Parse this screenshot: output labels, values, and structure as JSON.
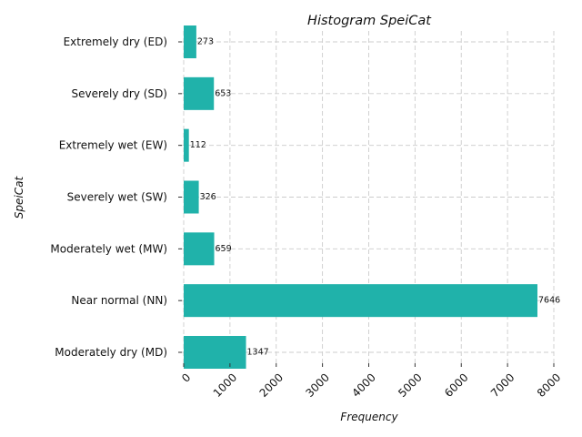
{
  "chart_data": {
    "type": "bar",
    "orientation": "horizontal",
    "title": "Histogram SpeiCat",
    "xlabel": "Frequency",
    "ylabel": "SpeiCat",
    "categories": [
      "Extremely dry (ED)",
      "Severely dry (SD)",
      "Extremely wet (EW)",
      "Severely wet (SW)",
      "Moderately wet (MW)",
      "Near normal (NN)",
      "Moderately dry (MD)"
    ],
    "values": [
      273,
      653,
      112,
      326,
      659,
      7646,
      1347
    ],
    "xlim": [
      0,
      8000
    ],
    "xticks": [
      0,
      1000,
      2000,
      3000,
      4000,
      5000,
      6000,
      7000,
      8000
    ],
    "grid": true,
    "bar_color": "#20b2aa"
  }
}
